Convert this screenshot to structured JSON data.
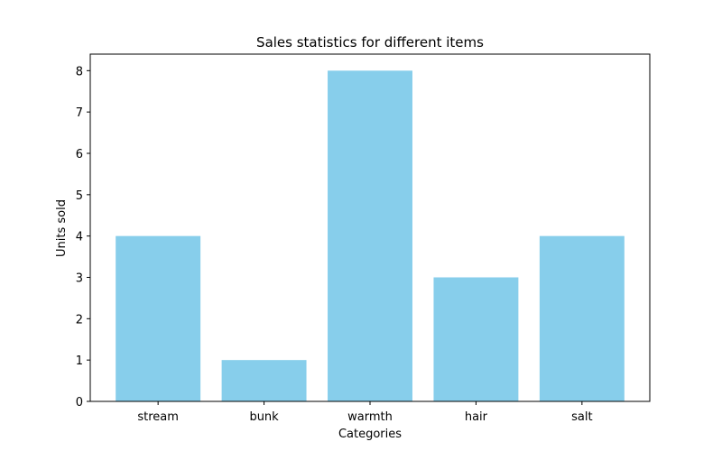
{
  "chart_data": {
    "type": "bar",
    "title": "Sales statistics for different items",
    "xlabel": "Categories",
    "ylabel": "Units sold",
    "categories": [
      "stream",
      "bunk",
      "warmth",
      "hair",
      "salt"
    ],
    "values": [
      4,
      1,
      8,
      3,
      4
    ],
    "ylim": [
      0,
      8.4
    ],
    "yticks": [
      0,
      1,
      2,
      3,
      4,
      5,
      6,
      7,
      8
    ],
    "bar_color": "#87CEEB",
    "grid": false,
    "legend": "none"
  }
}
